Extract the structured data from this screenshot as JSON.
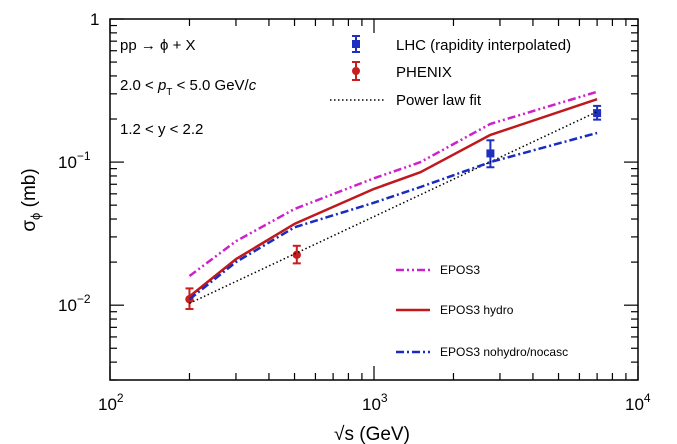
{
  "chart_data": {
    "type": "line",
    "x_scale": "log",
    "y_scale": "log",
    "xlim": [
      100,
      10000
    ],
    "ylim": [
      0.003,
      1
    ],
    "x_tick_labels": [
      {
        "base": "10",
        "exp": "2",
        "value": 100
      },
      {
        "base": "10",
        "exp": "3",
        "value": 1000
      },
      {
        "base": "10",
        "exp": "4",
        "value": 10000
      }
    ],
    "y_tick_labels": [
      {
        "text": "1",
        "base": "",
        "exp": "",
        "value": 1
      },
      {
        "text": "",
        "base": "10",
        "exp": "−1",
        "value": 0.1
      },
      {
        "text": "",
        "base": "10",
        "exp": "−2",
        "value": 0.01
      }
    ],
    "xlabel": "√s (GeV)",
    "ylabel_main": "σ",
    "ylabel_sub": "ϕ",
    "ylabel_unit": " (mb)",
    "annotations": {
      "reaction": "pp → ϕ + X",
      "pt_pre": "2.0 < ",
      "pt_var": "p",
      "pt_sub": "T",
      "pt_mid": " < 5.0 GeV/",
      "pt_c": "c",
      "rapidity": "1.2 < y < 2.2"
    },
    "series": [
      {
        "name": "LHC (rapidity interpolated)",
        "kind": "points",
        "marker": "square",
        "color": "#1f2fbf",
        "points": [
          {
            "x": 2760,
            "y": 0.115,
            "err_lo": 0.092,
            "err_hi": 0.142
          },
          {
            "x": 7000,
            "y": 0.22,
            "err_lo": 0.198,
            "err_hi": 0.247
          }
        ]
      },
      {
        "name": "PHENIX",
        "kind": "points",
        "marker": "circle",
        "color": "#c81e1e",
        "points": [
          {
            "x": 200,
            "y": 0.011,
            "err_lo": 0.0094,
            "err_hi": 0.0131
          },
          {
            "x": 510,
            "y": 0.0225,
            "err_lo": 0.0196,
            "err_hi": 0.026
          }
        ]
      },
      {
        "name": "Power law fit",
        "kind": "line",
        "style": "dotted",
        "color": "#000000",
        "x": [
          200,
          7000
        ],
        "y": [
          0.0103,
          0.225
        ]
      },
      {
        "name": "EPOS3",
        "kind": "line",
        "style": "dashdotdot",
        "color": "#cc22cc",
        "x": [
          200,
          300,
          500,
          1000,
          1500,
          2760,
          7000
        ],
        "y": [
          0.016,
          0.028,
          0.047,
          0.077,
          0.1,
          0.185,
          0.31
        ]
      },
      {
        "name": "EPOS3 hydro",
        "kind": "line",
        "style": "solid",
        "color": "#c0181c",
        "x": [
          200,
          300,
          500,
          1000,
          1500,
          2760,
          7000
        ],
        "y": [
          0.0115,
          0.021,
          0.037,
          0.065,
          0.085,
          0.155,
          0.275
        ]
      },
      {
        "name": "EPOS3 nohydro/nocasc",
        "kind": "line",
        "style": "dashdot",
        "color": "#1a2cc0",
        "x": [
          200,
          300,
          500,
          1000,
          1500,
          2760,
          7000
        ],
        "y": [
          0.011,
          0.02,
          0.035,
          0.052,
          0.067,
          0.1,
          0.16
        ]
      }
    ],
    "legend_top": [
      "LHC (rapidity interpolated)",
      "PHENIX",
      "Power law fit"
    ],
    "legend_bottom": [
      "EPOS3",
      "EPOS3 hydro",
      "EPOS3 nohydro/nocasc"
    ]
  }
}
